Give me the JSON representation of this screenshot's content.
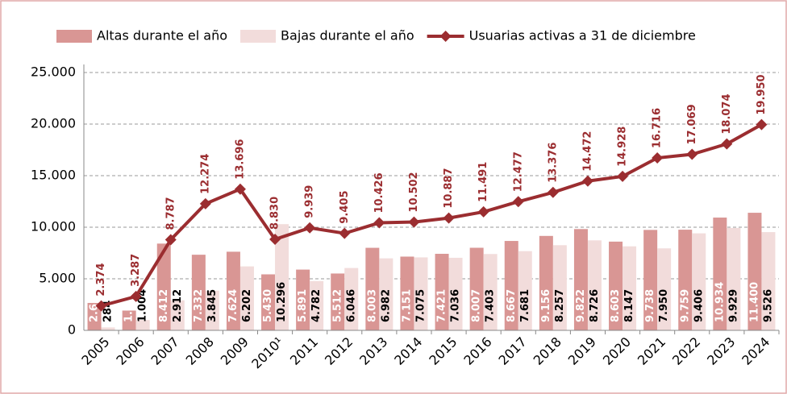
{
  "chart_data": {
    "type": "bar",
    "categories": [
      "2005",
      "2006",
      "2007",
      "2008",
      "2009",
      "2010¹",
      "2011",
      "2012",
      "2013",
      "2014",
      "2015",
      "2016",
      "2017",
      "2018",
      "2019",
      "2020",
      "2021",
      "2022",
      "2023",
      "2024"
    ],
    "series": [
      {
        "name": "Altas durante el año",
        "type": "bar",
        "color": "#d99694",
        "values": [
          2658,
          1917,
          8412,
          7332,
          7624,
          5430,
          5891,
          5512,
          8003,
          7151,
          7421,
          8007,
          8667,
          9156,
          9822,
          8603,
          9738,
          9759,
          10934,
          11400
        ],
        "value_labels": [
          "2.658",
          "1.917",
          "8.412",
          "7.332",
          "7.624",
          "5.430",
          "5.891",
          "5.512",
          "8.003",
          "7.151",
          "7.421",
          "8.007",
          "8.667",
          "9.156",
          "9.822",
          "8.603",
          "9.738",
          "9.759",
          "10.934",
          "11.400"
        ]
      },
      {
        "name": "Bajas durante el año",
        "type": "bar",
        "color": "#f2dcdb",
        "values": [
          284,
          1004,
          2912,
          3845,
          6202,
          10296,
          4782,
          6046,
          6982,
          7075,
          7036,
          7403,
          7681,
          8257,
          8726,
          8147,
          7950,
          9406,
          9929,
          9526
        ],
        "value_labels": [
          "284",
          "1.004",
          "2.912",
          "3.845",
          "6.202",
          "10.296",
          "4.782",
          "6.046",
          "6.982",
          "7.075",
          "7.036",
          "7.403",
          "7.681",
          "8.257",
          "8.726",
          "8.147",
          "7.950",
          "9.406",
          "9.929",
          "9.526"
        ]
      },
      {
        "name": "Usuarias activas a 31 de diciembre",
        "type": "line",
        "color": "#9b2d30",
        "values": [
          2374,
          3287,
          8787,
          12274,
          13696,
          8830,
          9939,
          9405,
          10426,
          10502,
          10887,
          11491,
          12477,
          13376,
          14472,
          14928,
          16716,
          17069,
          18074,
          19950
        ],
        "value_labels": [
          "2.374",
          "3.287",
          "8.787",
          "12.274",
          "13.696",
          "8.830",
          "9.939",
          "9.405",
          "10.426",
          "10.502",
          "10.887",
          "11.491",
          "12.477",
          "13.376",
          "14.472",
          "14.928",
          "16.716",
          "17.069",
          "18.074",
          "19.950"
        ]
      }
    ],
    "ylim": [
      0,
      25000
    ],
    "yticks": [
      0,
      {
        "value": 5000,
        "label": "5.000"
      },
      {
        "value": 10000,
        "label": "10.000"
      },
      {
        "value": 15000,
        "label": "15.000"
      },
      {
        "value": 20000,
        "label": "20.000"
      },
      {
        "value": 25000,
        "label": "25.000"
      }
    ],
    "grid": true,
    "legend": "top"
  }
}
